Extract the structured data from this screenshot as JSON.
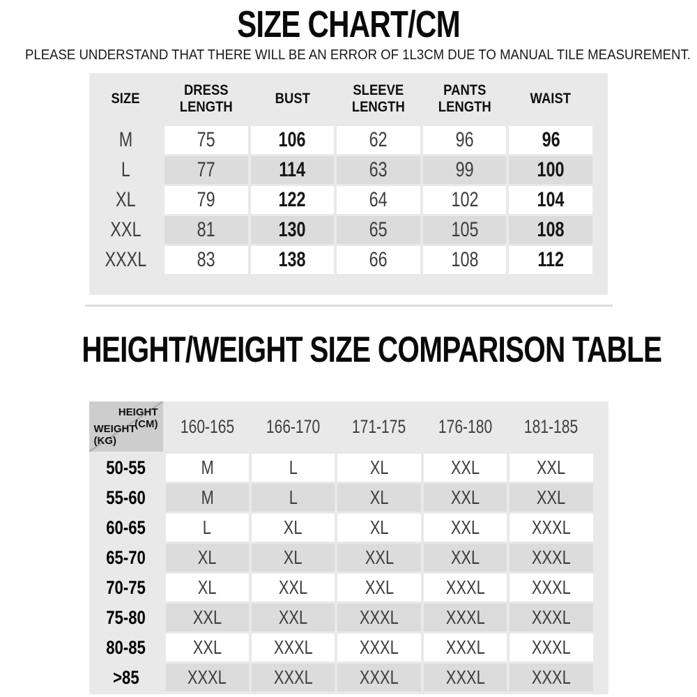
{
  "page": {
    "title": "SIZE CHART/CM",
    "subtitle": "PLEASE UNDERSTAND THAT THERE WILL BE AN ERROR OF 1L3CM DUE TO MANUAL TILE MEASUREMENT.",
    "section2_title": "HEIGHT/WEIGHT SIZE COMPARISON TABLE"
  },
  "size_chart": {
    "columns": [
      "SIZE",
      "DRESS LENGTH",
      "BUST",
      "SLEEVE LENGTH",
      "PANTS LENGTH",
      "WAIST"
    ],
    "bold_value_columns": [
      1,
      4
    ],
    "rows": [
      {
        "size": "M",
        "values": [
          "75",
          "106",
          "62",
          "96",
          "96"
        ]
      },
      {
        "size": "L",
        "values": [
          "77",
          "114",
          "63",
          "99",
          "100"
        ]
      },
      {
        "size": "XL",
        "values": [
          "79",
          "122",
          "64",
          "102",
          "104"
        ]
      },
      {
        "size": "XXL",
        "values": [
          "81",
          "130",
          "65",
          "105",
          "108"
        ]
      },
      {
        "size": "XXXL",
        "values": [
          "83",
          "138",
          "66",
          "108",
          "112"
        ]
      }
    ]
  },
  "comparison_table": {
    "corner": {
      "top": [
        "HEIGHT",
        "(CM)"
      ],
      "bottom": [
        "WEIGHT",
        "(KG)"
      ]
    },
    "height_columns": [
      "160-165",
      "166-170",
      "171-175",
      "176-180",
      "181-185"
    ],
    "rows": [
      {
        "weight": "50-55",
        "sizes": [
          "M",
          "L",
          "XL",
          "XXL",
          "XXL"
        ]
      },
      {
        "weight": "55-60",
        "sizes": [
          "M",
          "L",
          "XL",
          "XXL",
          "XXL"
        ]
      },
      {
        "weight": "60-65",
        "sizes": [
          "L",
          "XL",
          "XL",
          "XXL",
          "XXXL"
        ]
      },
      {
        "weight": "65-70",
        "sizes": [
          "XL",
          "XL",
          "XXL",
          "XXL",
          "XXXL"
        ]
      },
      {
        "weight": "70-75",
        "sizes": [
          "XL",
          "XXL",
          "XXL",
          "XXXL",
          "XXXL"
        ]
      },
      {
        "weight": "75-80",
        "sizes": [
          "XXL",
          "XXL",
          "XXXL",
          "XXXL",
          "XXXL"
        ]
      },
      {
        "weight": "80-85",
        "sizes": [
          "XXL",
          "XXXL",
          "XXXL",
          "XXXL",
          "XXXL"
        ]
      },
      {
        "weight": ">85",
        "sizes": [
          "XXXL",
          "XXXL",
          "XXXL",
          "XXXL",
          "XXXL"
        ]
      }
    ]
  },
  "colors": {
    "container_bg": "#e9e9e9",
    "alt_row_bg": "#dcdcdc",
    "cell_bg": "#ffffff",
    "corner_bg": "#cdcdcd",
    "divider": "#dcdcdc",
    "title_text": "#0a0a0a",
    "value_text": "#3d3d3d"
  }
}
